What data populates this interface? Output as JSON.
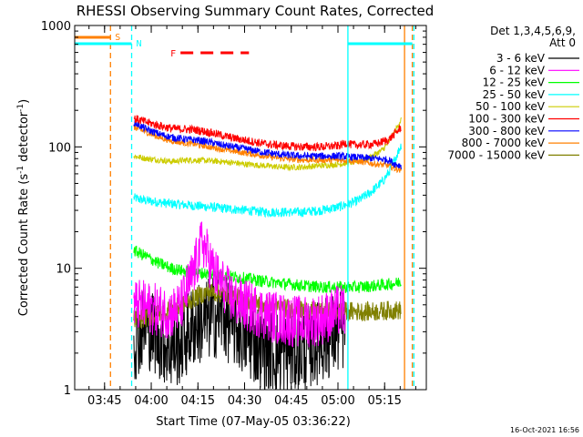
{
  "chart_data": {
    "type": "line",
    "title": "RHESSI Observing Summary Count Rates, Corrected",
    "ylabel_main": "Corrected Count Rate (s",
    "ylabel_sup1": "-1",
    "ylabel_mid": " detector",
    "ylabel_sup2": "-1",
    "ylabel_end": ")",
    "xlabel": "Start Time (07-May-05 03:36:22)",
    "footer": "16-Oct-2021 16:56",
    "y_scale": "log",
    "ylim": [
      1,
      1000
    ],
    "x_range_min": [
      -1,
      80
    ],
    "y_ticks": [
      {
        "v": 1,
        "label": "1"
      },
      {
        "v": 10,
        "label": "10"
      },
      {
        "v": 100,
        "label": "100"
      },
      {
        "v": 1000,
        "label": "1000"
      }
    ],
    "x_ticks": [
      {
        "t": 8.6,
        "label": "03:45"
      },
      {
        "t": 23.6,
        "label": "04:00"
      },
      {
        "t": 38.6,
        "label": "04:15"
      },
      {
        "t": 53.6,
        "label": "04:30"
      },
      {
        "t": 68.6,
        "label": "04:45"
      },
      {
        "t": 83.6,
        "label": "05:00"
      },
      {
        "t": 98.6,
        "label": "05:15"
      }
    ],
    "legend": {
      "header1": "Det 1,3,4,5,6,9,",
      "header2": "Att 0",
      "placement": "top-right"
    },
    "series": [
      {
        "name": "3 - 6 keV",
        "color": "#000000",
        "x": [
          18,
          22,
          24,
          26,
          28,
          30,
          33,
          35,
          37,
          40,
          43,
          46,
          50,
          55,
          60,
          66,
          72,
          78,
          84,
          86
        ],
        "y": [
          2.6,
          3.4,
          3.0,
          2.7,
          2.4,
          2.2,
          2.4,
          2.8,
          3.3,
          3.6,
          3.9,
          4.1,
          3.4,
          2.6,
          2.2,
          2.0,
          2.1,
          2.5,
          3.0,
          3.2
        ]
      },
      {
        "name": "6 - 12 keV",
        "color": "#ff00ff",
        "x": [
          18,
          22,
          26,
          30,
          33,
          35,
          37,
          39,
          40,
          42,
          44,
          47,
          50,
          55,
          60,
          66,
          72,
          78,
          82,
          84,
          86
        ],
        "y": [
          5.0,
          4.8,
          4.5,
          4.3,
          4.8,
          6.5,
          9.0,
          13.0,
          17.0,
          12.0,
          9.0,
          7.0,
          5.5,
          4.8,
          4.2,
          3.8,
          3.6,
          3.8,
          4.2,
          4.5,
          4.5
        ]
      },
      {
        "name": "12 - 25 keV",
        "color": "#00ff00",
        "x": [
          18,
          22,
          26,
          30,
          34,
          38,
          42,
          46,
          50,
          55,
          60,
          66,
          72,
          78,
          84,
          90,
          96,
          102,
          104
        ],
        "y": [
          14,
          12.5,
          11,
          10,
          9.5,
          9.2,
          9.0,
          8.8,
          8.5,
          8.2,
          7.8,
          7.5,
          7.2,
          7.0,
          7.0,
          7.0,
          7.2,
          7.5,
          7.8
        ]
      },
      {
        "name": "25 - 50 keV",
        "color": "#00ffff",
        "x": [
          18,
          22,
          26,
          30,
          36,
          42,
          48,
          54,
          60,
          66,
          72,
          78,
          84,
          90,
          94,
          98,
          100,
          102,
          104
        ],
        "y": [
          38,
          36,
          35,
          34,
          33,
          32,
          31,
          30,
          29,
          29,
          29,
          30,
          32,
          36,
          42,
          52,
          62,
          80,
          105
        ]
      },
      {
        "name": "50 - 100 keV",
        "color": "#cccc00",
        "x": [
          18,
          22,
          26,
          30,
          36,
          42,
          48,
          54,
          60,
          66,
          72,
          78,
          84,
          90,
          94,
          98,
          100,
          102,
          104
        ],
        "y": [
          84,
          80,
          78,
          76,
          78,
          77,
          75,
          72,
          70,
          68,
          68,
          70,
          72,
          76,
          82,
          95,
          110,
          135,
          170
        ]
      },
      {
        "name": "100 - 300 keV",
        "color": "#ff0000",
        "x": [
          18,
          22,
          26,
          30,
          34,
          38,
          42,
          46,
          50,
          55,
          60,
          66,
          72,
          78,
          84,
          86,
          88,
          92,
          96,
          100,
          104
        ],
        "y": [
          172,
          160,
          150,
          142,
          140,
          138,
          132,
          125,
          118,
          112,
          106,
          102,
          100,
          100,
          102,
          108,
          104,
          104,
          106,
          115,
          145
        ]
      },
      {
        "name": "300 - 800 keV",
        "color": "#0000ff",
        "x": [
          18,
          22,
          26,
          30,
          34,
          38,
          42,
          46,
          50,
          55,
          60,
          66,
          72,
          78,
          84,
          90,
          96,
          100,
          102,
          104
        ],
        "y": [
          160,
          140,
          128,
          120,
          116,
          114,
          110,
          104,
          100,
          95,
          90,
          86,
          84,
          84,
          84,
          82,
          80,
          78,
          72,
          70
        ]
      },
      {
        "name": "800 - 7000 keV",
        "color": "#ff8000",
        "x": [
          18,
          22,
          26,
          30,
          34,
          38,
          42,
          46,
          50,
          55,
          60,
          66,
          72,
          78,
          84,
          90,
          96,
          100,
          102,
          104
        ],
        "y": [
          145,
          132,
          120,
          112,
          108,
          105,
          100,
          96,
          92,
          88,
          84,
          80,
          78,
          78,
          78,
          76,
          72,
          70,
          66,
          64
        ]
      },
      {
        "name": "7000 - 15000 keV",
        "color": "#808000",
        "x": [
          18,
          22,
          26,
          30,
          34,
          38,
          42,
          46,
          50,
          55,
          60,
          66,
          72,
          78,
          84,
          90,
          96,
          100,
          104
        ],
        "y": [
          3.8,
          3.9,
          4.2,
          4.6,
          5.0,
          5.8,
          6.4,
          6.2,
          5.8,
          5.4,
          5.0,
          4.7,
          4.5,
          4.4,
          4.4,
          4.4,
          4.4,
          4.5,
          4.5
        ]
      }
    ],
    "flag_lines": [
      {
        "label": "S",
        "color": "#ff8000",
        "style": "dashed",
        "x": 10.5
      },
      {
        "label": "N",
        "color": "#00ffff",
        "style": "dashed",
        "x": 17.3
      },
      {
        "label": "",
        "color": "#00ffff",
        "style": "solid",
        "x": 86.8
      },
      {
        "label": "",
        "color": "#ff8000",
        "style": "solid",
        "x": 105.0
      },
      {
        "label": "",
        "color": "#ff8000",
        "style": "dashed",
        "x": 107.5
      },
      {
        "label": "",
        "color": "#00ffff",
        "style": "dashed",
        "x": 108.0
      }
    ],
    "flag_bars": [
      {
        "label": "F",
        "color": "#ff0000",
        "t_start": 33.0,
        "t_end": 55.0,
        "level": "upper"
      },
      {
        "label": "S",
        "color": "#ff8000",
        "t_start": -1.0,
        "t_end": 10.5,
        "level": "top"
      },
      {
        "label": "N",
        "color": "#00ffff",
        "t_start": -1.0,
        "t_end": 17.3,
        "level": "second"
      },
      {
        "label": "",
        "color": "#00ffff",
        "t_start": 86.8,
        "t_end": 107.5,
        "level": "second"
      }
    ]
  }
}
